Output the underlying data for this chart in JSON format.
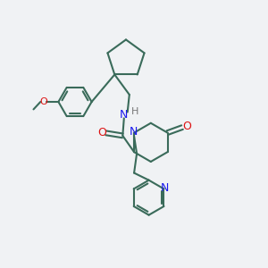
{
  "bg_color": "#f0f2f4",
  "bond_color": "#3a6b5a",
  "nitrogen_color": "#1a1aee",
  "oxygen_color": "#dd1111",
  "hydrogen_color": "#777777",
  "line_width": 1.5,
  "figsize": [
    3.0,
    3.0
  ],
  "dpi": 100,
  "xlim": [
    0,
    10
  ],
  "ylim": [
    0,
    10
  ]
}
